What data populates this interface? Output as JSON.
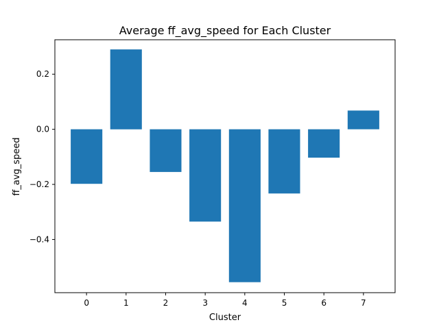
{
  "chart_data": {
    "type": "bar",
    "title": "Average ff_avg_speed for Each Cluster",
    "xlabel": "Cluster",
    "ylabel": "ff_avg_speed",
    "categories": [
      "0",
      "1",
      "2",
      "3",
      "4",
      "5",
      "6",
      "7"
    ],
    "values": [
      -0.198,
      0.29,
      -0.155,
      -0.335,
      -0.555,
      -0.233,
      -0.103,
      0.068
    ],
    "yticks": [
      0.2,
      0.0,
      -0.2,
      -0.4
    ],
    "ytick_labels": [
      "0.2",
      "0.0",
      "−0.2",
      "−0.4"
    ],
    "ylim": [
      -0.593,
      0.325
    ],
    "xlim": [
      -0.8,
      7.8
    ],
    "bar_color": "#1f77b4",
    "grid": false,
    "legend": "none"
  }
}
